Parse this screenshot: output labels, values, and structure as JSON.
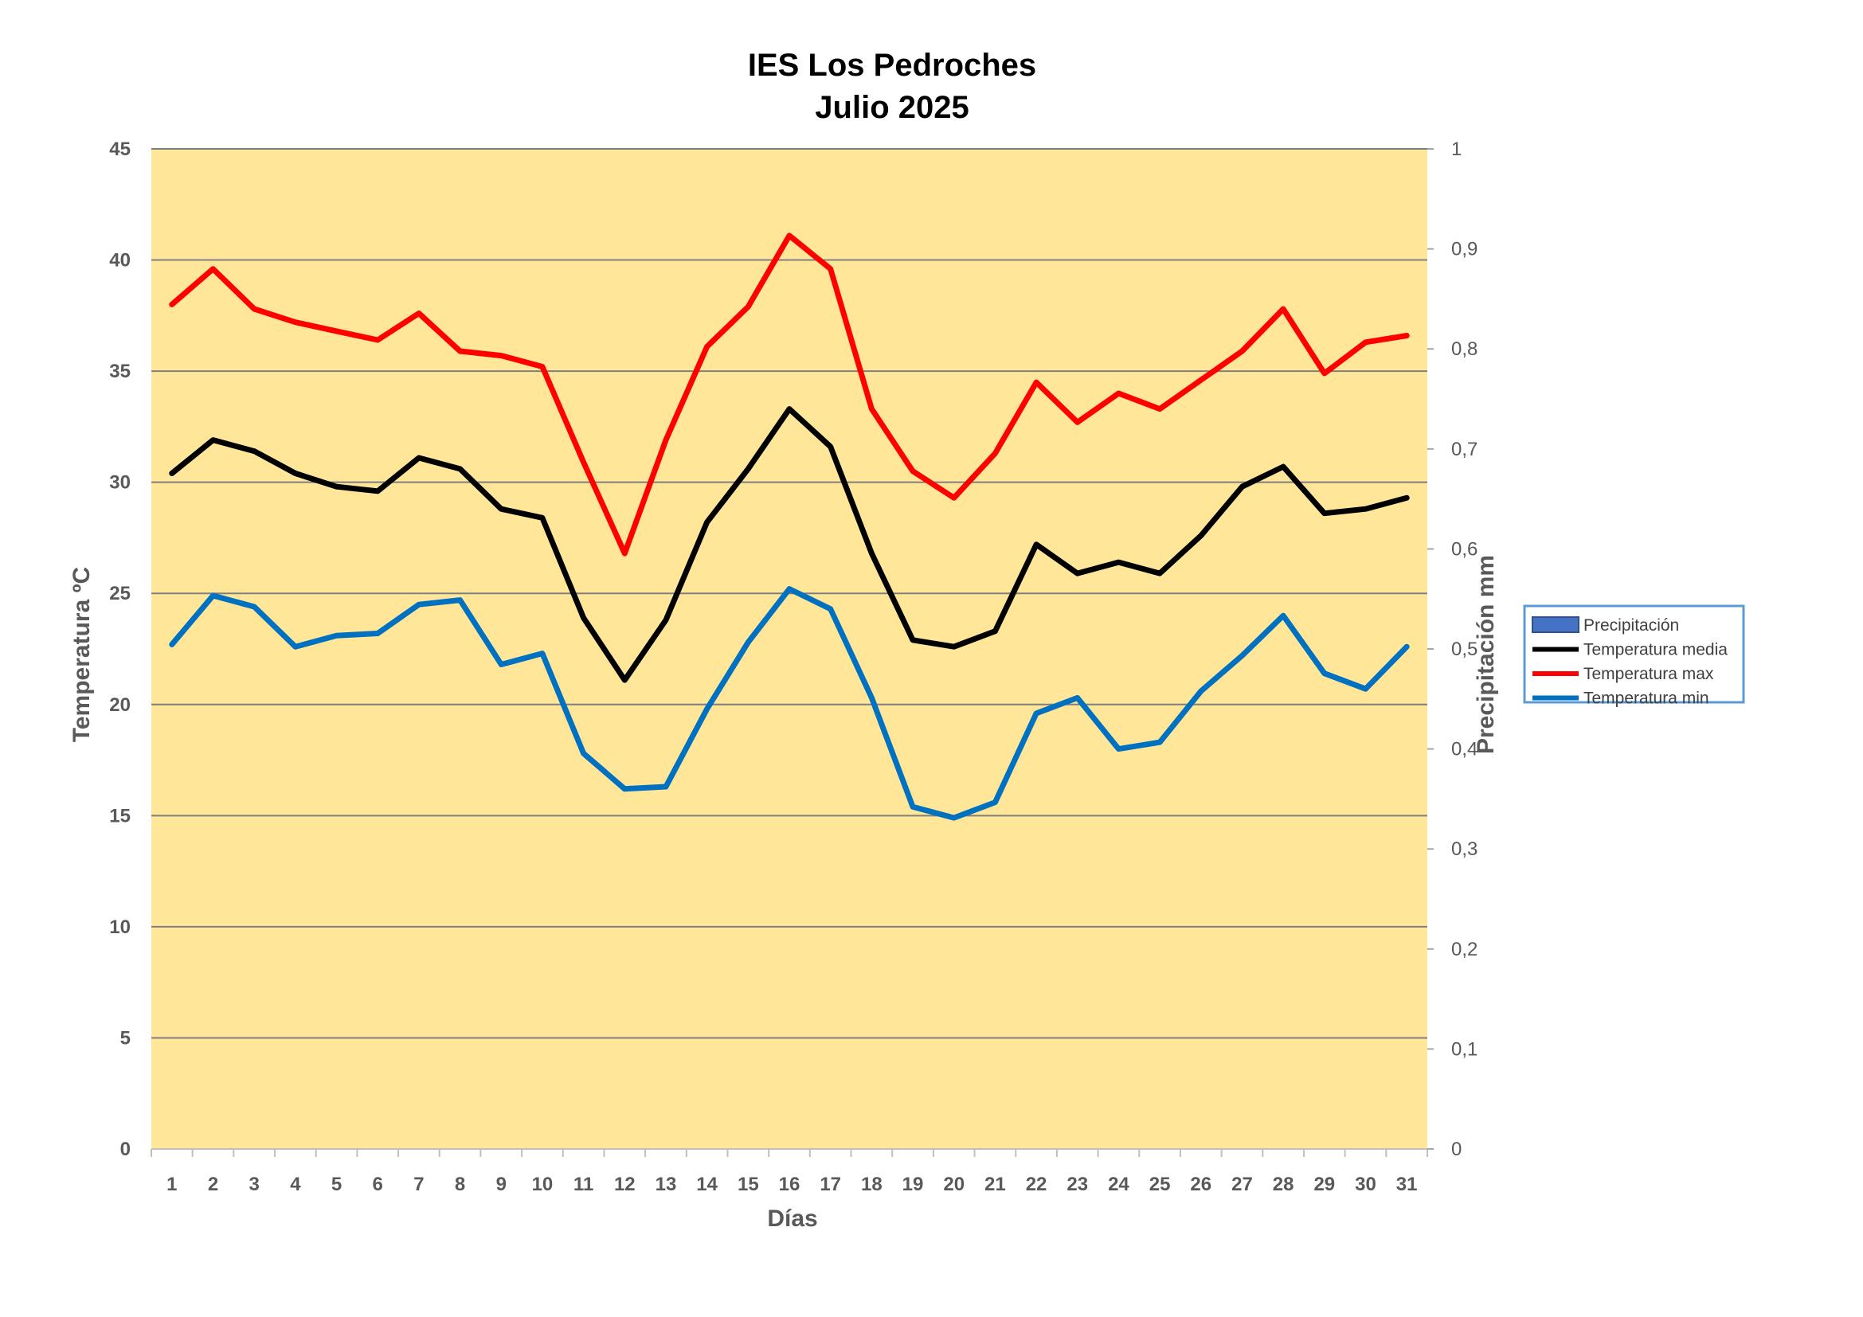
{
  "chart_data": {
    "type": "line",
    "title": "IES Los Pedroches",
    "subtitle": "Julio 2025",
    "xlabel": "Días",
    "ylabel": "Temperatura ºC",
    "y2label": "Precipitación mm",
    "ylim": [
      0,
      45
    ],
    "yticks": [
      "0",
      "5",
      "10",
      "15",
      "20",
      "25",
      "30",
      "35",
      "40",
      "45"
    ],
    "y2lim": [
      0,
      1
    ],
    "y2ticks": [
      "0",
      "0,1",
      "0,2",
      "0,3",
      "0,4",
      "0,5",
      "0,6",
      "0,7",
      "0,8",
      "0,9",
      "1"
    ],
    "grid": true,
    "legend_position": "right",
    "plot_background": "#FFE699",
    "categories": [
      "1",
      "2",
      "3",
      "4",
      "5",
      "6",
      "7",
      "8",
      "9",
      "10",
      "11",
      "12",
      "13",
      "14",
      "15",
      "16",
      "17",
      "18",
      "19",
      "20",
      "21",
      "22",
      "23",
      "24",
      "25",
      "26",
      "27",
      "28",
      "29",
      "30",
      "31"
    ],
    "series": [
      {
        "name": "Precipitación",
        "color": "#4472C4",
        "kind": "bar",
        "values": [
          0,
          0,
          0,
          0,
          0,
          0,
          0,
          0,
          0,
          0,
          0,
          0,
          0,
          0,
          0,
          0,
          0,
          0,
          0,
          0,
          0,
          0,
          0,
          0,
          0,
          0,
          0,
          0,
          0,
          0,
          0
        ]
      },
      {
        "name": "Temperatura media",
        "color": "#000000",
        "kind": "line",
        "values": [
          30.4,
          31.9,
          31.4,
          30.4,
          29.8,
          29.6,
          31.1,
          30.6,
          28.8,
          28.4,
          23.9,
          21.1,
          23.8,
          28.2,
          30.6,
          33.3,
          31.6,
          26.8,
          22.9,
          22.6,
          23.3,
          27.2,
          25.9,
          26.4,
          25.9,
          27.6,
          29.8,
          30.7,
          28.6,
          28.8,
          29.3
        ]
      },
      {
        "name": "Temperatura max",
        "color": "#FF0000",
        "kind": "line",
        "values": [
          38.0,
          39.6,
          37.8,
          37.2,
          36.8,
          36.4,
          37.6,
          35.9,
          35.7,
          35.2,
          30.9,
          26.8,
          31.9,
          36.1,
          37.9,
          41.1,
          39.6,
          33.3,
          30.5,
          29.3,
          31.3,
          34.5,
          32.7,
          34.0,
          33.3,
          34.6,
          35.9,
          37.8,
          34.9,
          36.3,
          36.6
        ]
      },
      {
        "name": "Temperatura min",
        "color": "#0070C0",
        "kind": "line",
        "values": [
          22.7,
          24.9,
          24.4,
          22.6,
          23.1,
          23.2,
          24.5,
          24.7,
          21.8,
          22.3,
          17.8,
          16.2,
          16.3,
          19.8,
          22.8,
          25.2,
          24.3,
          20.3,
          15.4,
          14.9,
          15.6,
          19.6,
          20.3,
          18.0,
          18.3,
          20.6,
          22.2,
          24.0,
          21.4,
          20.7,
          22.6
        ]
      }
    ]
  }
}
